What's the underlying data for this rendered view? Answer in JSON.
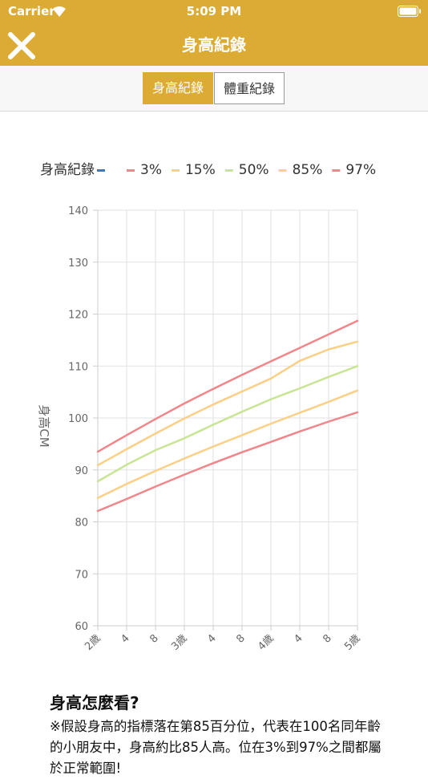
{
  "status_bar": {
    "carrier": "Carrier",
    "time": "5:09 PM"
  },
  "nav": {
    "title": "身高紀錄"
  },
  "tabs": [
    "身高紀錄",
    "體重紀錄"
  ],
  "chart_data": {
    "type": "line",
    "categories": [
      "2歲",
      "4",
      "8",
      "3歲",
      "4",
      "8",
      "4歲",
      "4",
      "8",
      "5歲"
    ],
    "y_label": "身高CM",
    "ylim": [
      60,
      140
    ],
    "yticks": [
      60,
      70,
      80,
      90,
      100,
      110,
      120,
      130,
      140
    ],
    "grid": true,
    "series": [
      {
        "name": "身高紀錄",
        "color": "#3a78c3",
        "values": [
          null,
          null,
          null,
          null,
          null,
          null,
          null,
          null,
          null,
          null
        ]
      },
      {
        "name": "3%",
        "color": "#f0868a",
        "values": [
          82.1,
          84.4,
          86.8,
          89.1,
          91.3,
          93.4,
          95.4,
          97.4,
          99.3,
          101.1
        ]
      },
      {
        "name": "15%",
        "color": "#fbcf86",
        "values": [
          84.6,
          87.3,
          89.8,
          92.2,
          94.5,
          96.7,
          98.9,
          101.0,
          103.1,
          105.3
        ]
      },
      {
        "name": "50%",
        "color": "#c8e596",
        "values": [
          87.8,
          91.0,
          93.8,
          96.1,
          98.7,
          101.2,
          103.6,
          105.7,
          107.9,
          110.0
        ]
      },
      {
        "name": "85%",
        "color": "#fbcf86",
        "values": [
          90.9,
          94.0,
          97.0,
          99.9,
          102.6,
          105.1,
          107.6,
          111.0,
          113.2,
          114.7
        ]
      },
      {
        "name": "97%",
        "color": "#f0868a",
        "values": [
          93.5,
          96.7,
          99.8,
          102.8,
          105.6,
          108.3,
          110.9,
          113.5,
          116.1,
          118.7
        ]
      }
    ]
  },
  "info": {
    "title": "身高怎麼看?",
    "text": "※假設身高的指標落在第85百分位，代表在100名同年齡的小朋友中，身高約比85人高。位在3%到97%之間都屬於正常範圍!"
  }
}
